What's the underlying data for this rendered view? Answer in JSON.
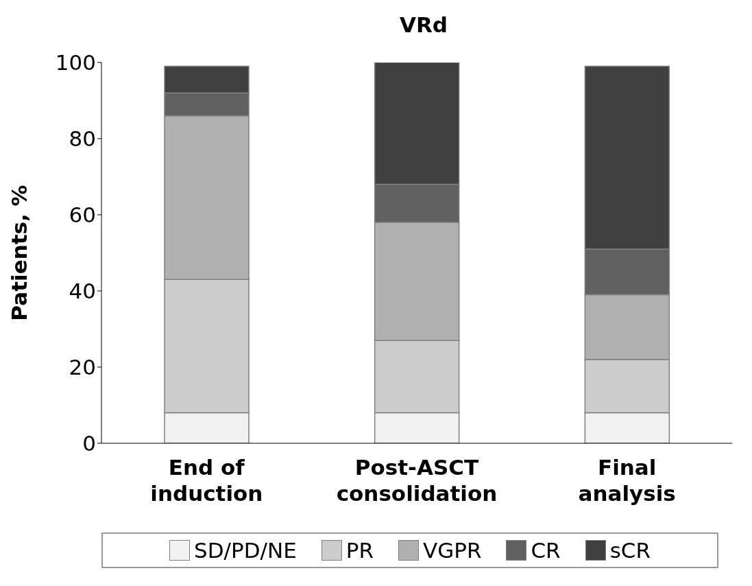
{
  "chart_data": {
    "type": "bar",
    "title": "VRd",
    "ylabel": "Patients, %",
    "categories": [
      "End of induction",
      "Post-ASCT consolidation",
      "Final analysis"
    ],
    "stacked": true,
    "series": [
      {
        "name": "SD/PD/NE",
        "color": "#f2f2f2",
        "values": [
          8,
          8,
          8
        ]
      },
      {
        "name": "PR",
        "color": "#cccccc",
        "values": [
          35,
          19,
          14
        ]
      },
      {
        "name": "VGPR",
        "color": "#b0b0b0",
        "values": [
          43,
          31,
          17
        ]
      },
      {
        "name": "CR",
        "color": "#606060",
        "values": [
          6,
          10,
          12
        ]
      },
      {
        "name": "sCR",
        "color": "#404040",
        "values": [
          7,
          32,
          48
        ]
      }
    ],
    "ylim": [
      0,
      100
    ],
    "yticks": [
      0,
      20,
      40,
      60,
      80,
      100
    ],
    "grid": false,
    "legend": "bottom"
  }
}
